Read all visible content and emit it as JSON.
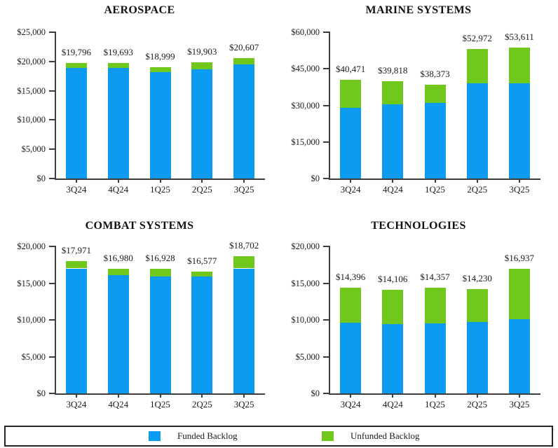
{
  "figure": {
    "description": "Quarterly total backlog by business segment, stacked funded vs unfunded, dollars in millions"
  },
  "colors": {
    "funded": "#0d9bf2",
    "unfunded": "#70c81c",
    "axis": "#3d3d3d",
    "text": "#1b1b1b",
    "background": "#ffffff"
  },
  "legend": {
    "position": "bottom",
    "items": [
      {
        "label": "Funded Backlog",
        "color_key": "funded"
      },
      {
        "label": "Unfunded Backlog",
        "color_key": "unfunded"
      }
    ]
  },
  "chart_data": [
    {
      "type": "bar",
      "stacked": true,
      "grid": false,
      "title": "AEROSPACE",
      "categories": [
        "3Q24",
        "4Q24",
        "1Q25",
        "2Q25",
        "3Q25"
      ],
      "series": [
        {
          "name": "Funded Backlog",
          "color_key": "funded",
          "values": [
            18900,
            18900,
            18150,
            18700,
            19500
          ]
        },
        {
          "name": "Unfunded Backlog",
          "color_key": "unfunded",
          "values": [
            896,
            793,
            849,
            1203,
            1107
          ]
        }
      ],
      "totals": [
        19796,
        19693,
        18999,
        19903,
        20607
      ],
      "total_labels": [
        "$19,796",
        "$19,693",
        "$18,999",
        "$19,903",
        "$20,607"
      ],
      "ylim": [
        0,
        25000
      ],
      "ytick_values": [
        0,
        5000,
        10000,
        15000,
        20000,
        25000
      ],
      "ytick_labels": [
        "$0",
        "$5,000",
        "$10,000",
        "$15,000",
        "$20,000",
        "$25,000"
      ]
    },
    {
      "type": "bar",
      "stacked": true,
      "grid": false,
      "title": "MARINE SYSTEMS",
      "categories": [
        "3Q24",
        "4Q24",
        "1Q25",
        "2Q25",
        "3Q25"
      ],
      "series": [
        {
          "name": "Funded Backlog",
          "color_key": "funded",
          "values": [
            29000,
            30400,
            31100,
            39100,
            38900
          ]
        },
        {
          "name": "Unfunded Backlog",
          "color_key": "unfunded",
          "values": [
            11471,
            9418,
            7273,
            13872,
            14711
          ]
        }
      ],
      "totals": [
        40471,
        39818,
        38373,
        52972,
        53611
      ],
      "total_labels": [
        "$40,471",
        "$39,818",
        "$38,373",
        "$52,972",
        "$53,611"
      ],
      "ylim": [
        0,
        60000
      ],
      "ytick_values": [
        0,
        15000,
        30000,
        45000,
        60000
      ],
      "ytick_labels": [
        "$0",
        "$15,000",
        "$30,000",
        "$45,000",
        "$60,000"
      ]
    },
    {
      "type": "bar",
      "stacked": true,
      "grid": false,
      "title": "COMBAT SYSTEMS",
      "categories": [
        "3Q24",
        "4Q24",
        "1Q25",
        "2Q25",
        "3Q25"
      ],
      "series": [
        {
          "name": "Funded Backlog",
          "color_key": "funded",
          "values": [
            17000,
            16100,
            15950,
            15950,
            17000
          ]
        },
        {
          "name": "Unfunded Backlog",
          "color_key": "unfunded",
          "values": [
            971,
            880,
            978,
            627,
            1702
          ]
        }
      ],
      "totals": [
        17971,
        16980,
        16928,
        16577,
        18702
      ],
      "total_labels": [
        "$17,971",
        "$16,980",
        "$16,928",
        "$16,577",
        "$18,702"
      ],
      "ylim": [
        0,
        20000
      ],
      "ytick_values": [
        0,
        5000,
        10000,
        15000,
        20000
      ],
      "ytick_labels": [
        "$0",
        "$5,000",
        "$10,000",
        "$15,000",
        "$20,000"
      ]
    },
    {
      "type": "bar",
      "stacked": true,
      "grid": false,
      "title": "TECHNOLOGIES",
      "categories": [
        "3Q24",
        "4Q24",
        "1Q25",
        "2Q25",
        "3Q25"
      ],
      "series": [
        {
          "name": "Funded Backlog",
          "color_key": "funded",
          "values": [
            9600,
            9400,
            9500,
            9700,
            10050
          ]
        },
        {
          "name": "Unfunded Backlog",
          "color_key": "unfunded",
          "values": [
            4796,
            4706,
            4857,
            4530,
            6887
          ]
        }
      ],
      "totals": [
        14396,
        14106,
        14357,
        14230,
        16937
      ],
      "total_labels": [
        "$14,396",
        "$14,106",
        "$14,357",
        "$14,230",
        "$16,937"
      ],
      "ylim": [
        0,
        20000
      ],
      "ytick_values": [
        0,
        5000,
        10000,
        15000,
        20000
      ],
      "ytick_labels": [
        "$0",
        "$5,000",
        "$10,000",
        "$15,000",
        "$20,000"
      ]
    }
  ]
}
